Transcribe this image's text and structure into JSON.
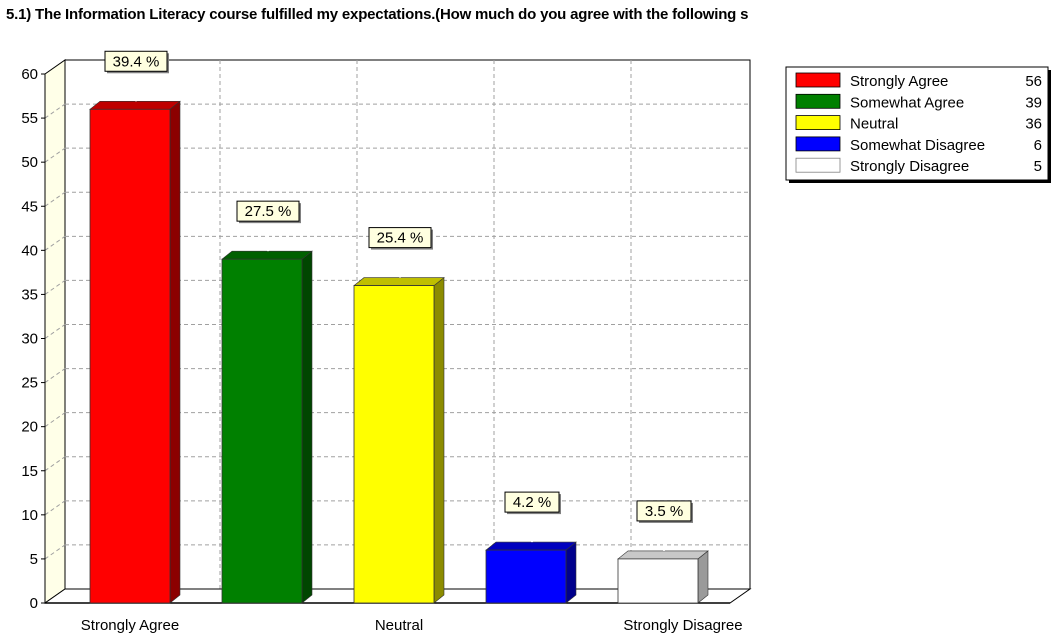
{
  "title": "5.1) The Information Literacy course fulfilled my expectations.(How much do you agree with the following s",
  "chart_data": {
    "type": "bar",
    "title": "5.1) The Information Literacy course fulfilled my expectations.(How much do you agree with the following s",
    "xlabel": "",
    "ylabel": "",
    "ylim": [
      0,
      60
    ],
    "yticks": [
      0,
      5,
      10,
      15,
      20,
      25,
      30,
      35,
      40,
      45,
      50,
      55,
      60
    ],
    "x_tick_labels": [
      "Strongly Agree",
      "Neutral",
      "Strongly Disagree"
    ],
    "grid": true,
    "legend_position": "top-right",
    "categories": [
      "Strongly Agree",
      "Somewhat Agree",
      "Neutral",
      "Somewhat Disagree",
      "Strongly Disagree"
    ],
    "values": [
      56,
      39,
      36,
      6,
      5
    ],
    "percent_labels": [
      "39.4 %",
      "27.5 %",
      "25.4 %",
      "4.2 %",
      "3.5 %"
    ],
    "colors": [
      "#ff0000",
      "#008000",
      "#ffff00",
      "#0000ff",
      "#ffffff"
    ],
    "legend": [
      {
        "label": "Strongly Agree",
        "value": "56"
      },
      {
        "label": "Somewhat Agree",
        "value": "39"
      },
      {
        "label": "Neutral",
        "value": "36"
      },
      {
        "label": "Somewhat Disagree",
        "value": "6"
      },
      {
        "label": "Strongly Disagree",
        "value": "5"
      }
    ]
  }
}
